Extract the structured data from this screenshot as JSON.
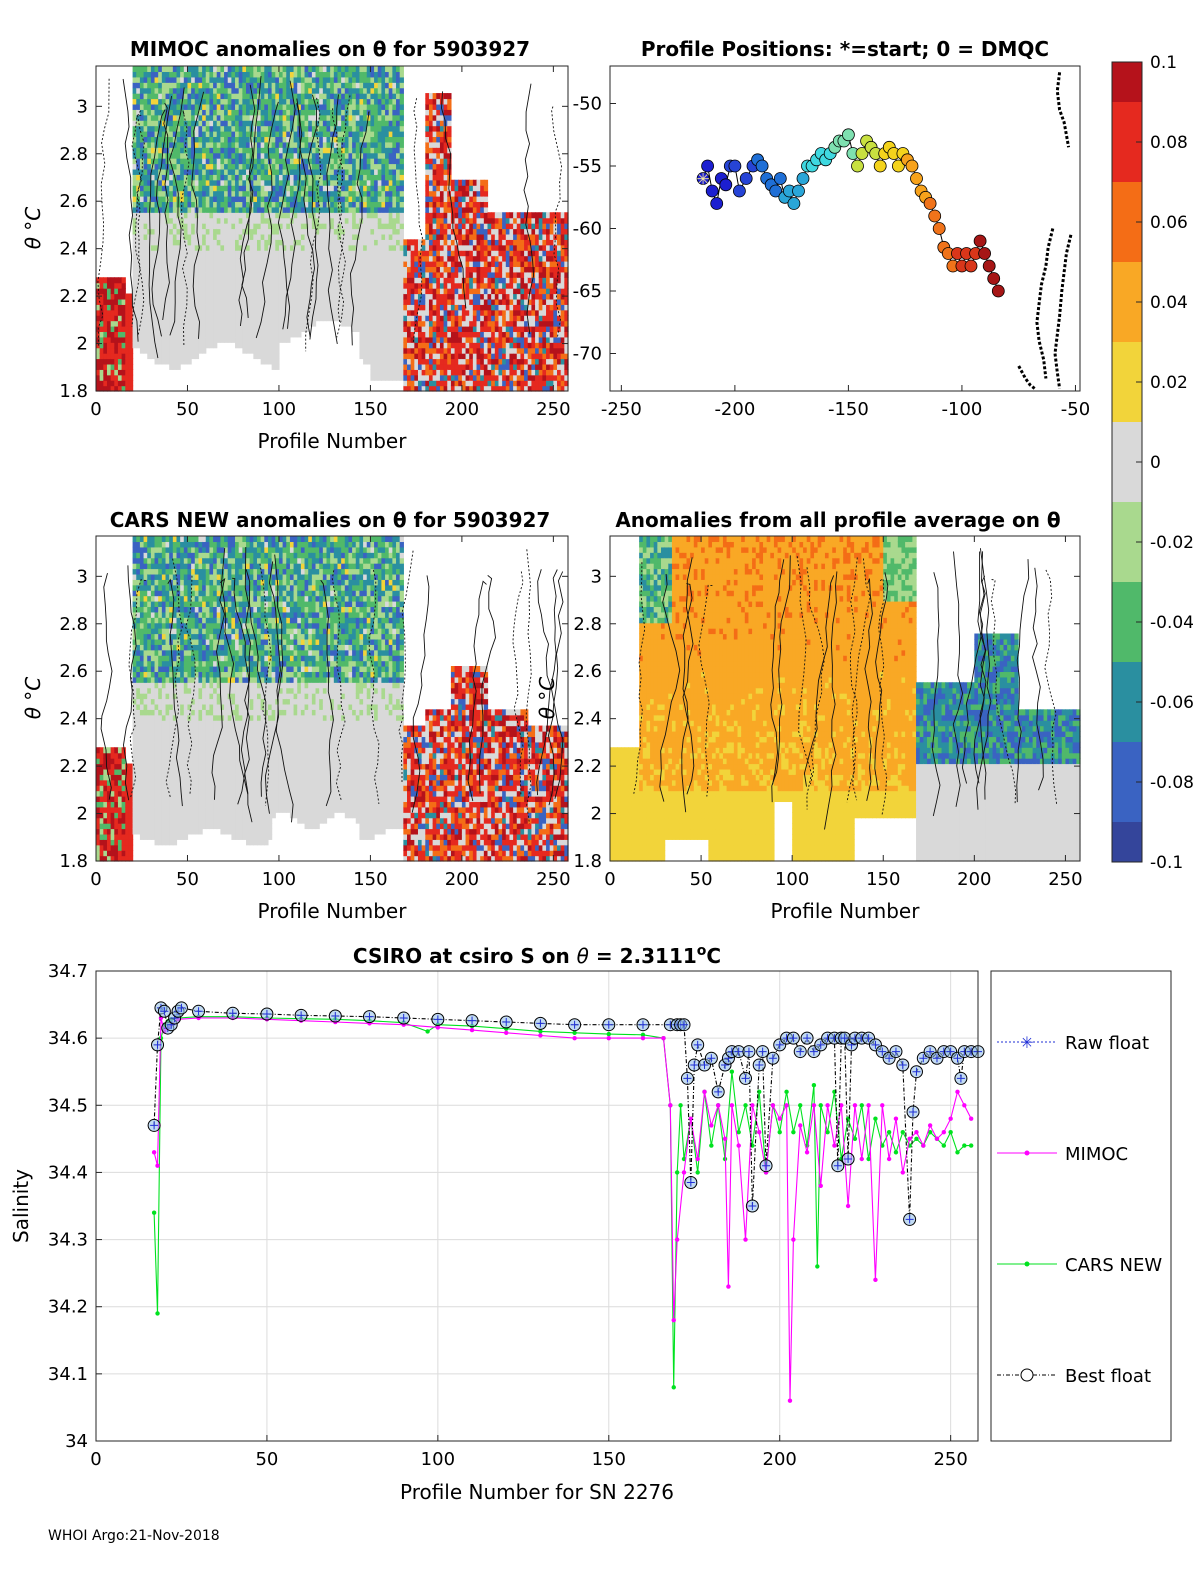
{
  "figure": {
    "footer": "WHOI Argo:21-Nov-2018",
    "colors": {
      "axis": "#262626",
      "grid": "#dcdcdc",
      "anomaly_neutral": "#d9d9d9"
    }
  },
  "colorbar": {
    "range": [
      -0.1,
      0.1
    ],
    "ticks": [
      "0.1",
      "0.08",
      "0.06",
      "0.04",
      "0.02",
      "0",
      "-0.02",
      "-0.04",
      "-0.06",
      "-0.08",
      "-0.1"
    ],
    "colors": [
      "#b5121b",
      "#e5291f",
      "#f46d16",
      "#f9a825",
      "#f2d43a",
      "#d9d9d9",
      "#a9d98e",
      "#50b96a",
      "#2a8fa0",
      "#3a63c2",
      "#34459b"
    ]
  },
  "chart_data": [
    {
      "id": "mimoc",
      "type": "heatmap",
      "title": "MIMOC anomalies on θ  for 5903927",
      "xlabel": "Profile Number",
      "ylabel": "θ °C",
      "xlim": [
        0,
        258
      ],
      "ylim": [
        1.8,
        3.17
      ],
      "xticks": [
        "0",
        "50",
        "100",
        "150",
        "200",
        "250"
      ],
      "yticks": [
        "1.8",
        "2",
        "2.2",
        "2.4",
        "2.6",
        "2.8",
        "3"
      ],
      "note": "warm (red) anomalies after profile 170; cool (green/blue) anomalies above 2.6 °C for profiles 20–170"
    },
    {
      "id": "positions",
      "type": "scatter",
      "title": "Profile Positions: *=start; 0 = DMQC",
      "xlim": [
        -255,
        -48
      ],
      "ylim": [
        -73,
        -47
      ],
      "xticks": [
        "-250",
        "-200",
        "-150",
        "-100",
        "-50"
      ],
      "yticks": [
        "-50",
        "-55",
        "-60",
        "-65",
        "-70"
      ],
      "track": [
        [
          -214,
          -56
        ],
        [
          -212,
          -55
        ],
        [
          -210,
          -57
        ],
        [
          -208,
          -58
        ],
        [
          -206,
          -56
        ],
        [
          -204,
          -56.5
        ],
        [
          -202,
          -55
        ],
        [
          -200,
          -55
        ],
        [
          -198,
          -57
        ],
        [
          -195,
          -56
        ],
        [
          -192,
          -55
        ],
        [
          -190,
          -54.5
        ],
        [
          -188,
          -55
        ],
        [
          -186,
          -56
        ],
        [
          -184,
          -56.5
        ],
        [
          -182,
          -57
        ],
        [
          -180,
          -56
        ],
        [
          -178,
          -57.5
        ],
        [
          -176,
          -57
        ],
        [
          -174,
          -58
        ],
        [
          -172,
          -57
        ],
        [
          -170,
          -56
        ],
        [
          -168,
          -55
        ],
        [
          -166,
          -55
        ],
        [
          -164,
          -54.5
        ],
        [
          -162,
          -54
        ],
        [
          -160,
          -54.5
        ],
        [
          -158,
          -54
        ],
        [
          -156,
          -53.5
        ],
        [
          -154,
          -53
        ],
        [
          -152,
          -53
        ],
        [
          -150,
          -52.5
        ],
        [
          -148,
          -54
        ],
        [
          -146,
          -55
        ],
        [
          -144,
          -54
        ],
        [
          -142,
          -53
        ],
        [
          -140,
          -53.5
        ],
        [
          -138,
          -54
        ],
        [
          -136,
          -55
        ],
        [
          -134,
          -54
        ],
        [
          -132,
          -53.5
        ],
        [
          -130,
          -54
        ],
        [
          -128,
          -55
        ],
        [
          -126,
          -54
        ],
        [
          -124,
          -54.5
        ],
        [
          -122,
          -55
        ],
        [
          -120,
          -56
        ],
        [
          -118,
          -57
        ],
        [
          -116,
          -57.5
        ],
        [
          -114,
          -58
        ],
        [
          -112,
          -59
        ],
        [
          -110,
          -60
        ],
        [
          -108,
          -61.5
        ],
        [
          -106,
          -62
        ],
        [
          -104,
          -63
        ],
        [
          -102,
          -62
        ],
        [
          -100,
          -63
        ],
        [
          -98,
          -62
        ],
        [
          -96,
          -63
        ],
        [
          -94,
          -62
        ],
        [
          -92,
          -61
        ],
        [
          -90,
          -62
        ],
        [
          -88,
          -63
        ],
        [
          -86,
          -64
        ],
        [
          -84,
          -65
        ]
      ]
    },
    {
      "id": "cars",
      "type": "heatmap",
      "title": "CARS NEW anomalies on θ for 5903927",
      "xlabel": "Profile Number",
      "ylabel": "θ °C",
      "xlim": [
        0,
        258
      ],
      "ylim": [
        1.8,
        3.17
      ],
      "xticks": [
        "0",
        "50",
        "100",
        "150",
        "200",
        "250"
      ],
      "yticks": [
        "1.8",
        "2",
        "2.2",
        "2.4",
        "2.6",
        "2.8",
        "3"
      ]
    },
    {
      "id": "allavg",
      "type": "heatmap",
      "title": "Anomalies from all profile average on θ",
      "xlabel": "Profile Number",
      "ylabel": "θ °C",
      "xlim": [
        0,
        258
      ],
      "ylim": [
        1.8,
        3.17
      ],
      "xticks": [
        "0",
        "50",
        "100",
        "150",
        "200",
        "250"
      ],
      "yticks": [
        "1.8",
        "2",
        "2.2",
        "2.4",
        "2.6",
        "2.8",
        "3"
      ]
    },
    {
      "id": "salinity",
      "type": "line",
      "title": "CSIRO at csiro S on θ = 2.3111°C",
      "title_main": "CSIRO at csiro S on ",
      "title_var": "θ",
      "title_eq": " = 2.3111",
      "title_sup": "o",
      "title_unit": "C",
      "xlabel": "Profile Number for SN 2276",
      "ylabel": "Salinity",
      "xlim": [
        0,
        258
      ],
      "ylim": [
        34,
        34.7
      ],
      "xticks": [
        "0",
        "50",
        "100",
        "150",
        "200",
        "250"
      ],
      "yticks": [
        "34",
        "34.1",
        "34.2",
        "34.3",
        "34.4",
        "34.5",
        "34.6",
        "34.7"
      ],
      "legend": [
        "Raw float",
        "MIMOC",
        "CARS NEW",
        "Best float"
      ],
      "series": [
        {
          "name": "Raw float",
          "color": "#1f2fd6",
          "x": [
            17,
            18,
            19,
            20,
            21,
            22,
            23,
            24,
            25,
            30,
            40,
            50,
            60,
            70,
            80,
            90,
            100,
            110,
            120,
            130,
            140,
            150,
            160,
            168,
            170,
            171,
            172,
            173,
            174,
            175,
            176,
            178,
            180,
            182,
            184,
            185,
            186,
            188,
            190,
            191,
            192,
            194,
            195,
            196,
            198,
            200,
            202,
            204,
            206,
            208,
            210,
            212,
            214,
            216,
            217,
            218,
            219,
            220,
            221,
            222,
            224,
            226,
            228,
            230,
            232,
            234,
            236,
            238,
            239,
            240,
            242,
            244,
            246,
            248,
            250,
            252,
            253,
            254,
            256,
            258
          ],
          "y": [
            34.47,
            34.59,
            34.645,
            34.64,
            34.615,
            34.62,
            34.63,
            34.64,
            34.645,
            34.64,
            34.637,
            34.636,
            34.634,
            34.633,
            34.632,
            34.63,
            34.628,
            34.626,
            34.624,
            34.622,
            34.62,
            34.62,
            34.62,
            34.62,
            34.62,
            34.62,
            34.62,
            34.54,
            34.385,
            34.56,
            34.59,
            34.56,
            34.57,
            34.52,
            34.56,
            34.57,
            34.58,
            34.58,
            34.54,
            34.58,
            34.35,
            34.56,
            34.58,
            34.41,
            34.57,
            34.59,
            34.6,
            34.6,
            34.58,
            34.6,
            34.58,
            34.59,
            34.6,
            34.6,
            34.41,
            34.6,
            34.6,
            34.42,
            34.59,
            34.6,
            34.6,
            34.6,
            34.59,
            34.58,
            34.57,
            34.58,
            34.56,
            34.33,
            34.49,
            34.55,
            34.57,
            34.58,
            34.57,
            34.58,
            34.58,
            34.57,
            34.54,
            34.58,
            34.58,
            34.58
          ]
        },
        {
          "name": "MIMOC",
          "color": "#ff00ff",
          "x": [
            17,
            18,
            19,
            20,
            21,
            22,
            24,
            30,
            40,
            50,
            60,
            70,
            80,
            90,
            100,
            110,
            120,
            130,
            140,
            150,
            160,
            166,
            168,
            169,
            170,
            172,
            174,
            176,
            178,
            180,
            182,
            184,
            185,
            186,
            188,
            190,
            192,
            194,
            196,
            198,
            200,
            202,
            203,
            204,
            206,
            208,
            210,
            212,
            214,
            216,
            218,
            220,
            222,
            224,
            226,
            228,
            230,
            232,
            234,
            236,
            238,
            240,
            242,
            244,
            246,
            248,
            250,
            252,
            254,
            256
          ],
          "y": [
            34.43,
            34.41,
            34.63,
            34.61,
            34.615,
            34.62,
            34.628,
            34.63,
            34.63,
            34.628,
            34.626,
            34.624,
            34.622,
            34.62,
            34.616,
            34.612,
            34.608,
            34.604,
            34.6,
            34.6,
            34.6,
            34.6,
            34.5,
            34.18,
            34.3,
            34.4,
            34.48,
            34.42,
            34.52,
            34.47,
            34.5,
            34.45,
            34.23,
            34.5,
            34.44,
            34.3,
            34.5,
            34.46,
            34.4,
            34.5,
            34.48,
            34.5,
            34.06,
            34.3,
            34.47,
            34.43,
            34.5,
            34.38,
            34.5,
            34.44,
            34.5,
            34.35,
            34.5,
            34.42,
            34.5,
            34.24,
            34.5,
            34.42,
            34.48,
            34.4,
            34.45,
            34.46,
            34.44,
            34.47,
            34.45,
            34.46,
            34.48,
            34.52,
            34.5,
            34.48
          ]
        },
        {
          "name": "CARS NEW",
          "color": "#00e21f",
          "x": [
            17,
            18,
            19,
            20,
            21,
            22,
            24,
            30,
            40,
            50,
            60,
            70,
            80,
            90,
            97,
            100,
            110,
            120,
            130,
            140,
            150,
            160,
            166,
            168,
            169,
            170,
            171,
            172,
            174,
            176,
            178,
            180,
            182,
            184,
            186,
            188,
            190,
            192,
            194,
            196,
            198,
            200,
            202,
            204,
            206,
            208,
            210,
            211,
            212,
            214,
            216,
            218,
            220,
            222,
            224,
            226,
            228,
            230,
            232,
            234,
            236,
            238,
            240,
            242,
            244,
            246,
            248,
            250,
            252,
            254,
            256
          ],
          "y": [
            34.34,
            34.19,
            34.6,
            34.62,
            34.625,
            34.628,
            34.63,
            34.632,
            34.632,
            34.63,
            34.629,
            34.628,
            34.626,
            34.623,
            34.61,
            34.62,
            34.618,
            34.614,
            34.61,
            34.608,
            34.606,
            34.605,
            34.6,
            34.5,
            34.08,
            34.4,
            34.5,
            34.42,
            34.48,
            34.4,
            34.52,
            34.44,
            34.5,
            34.42,
            34.55,
            34.46,
            34.5,
            34.44,
            34.52,
            34.4,
            34.5,
            34.46,
            34.52,
            34.46,
            34.5,
            34.44,
            34.53,
            34.26,
            34.5,
            34.46,
            34.52,
            34.42,
            34.48,
            34.45,
            34.5,
            34.42,
            34.48,
            34.44,
            34.46,
            34.43,
            34.46,
            34.44,
            34.45,
            34.44,
            34.46,
            34.45,
            34.44,
            34.46,
            34.43,
            34.44,
            34.44
          ]
        }
      ]
    }
  ]
}
